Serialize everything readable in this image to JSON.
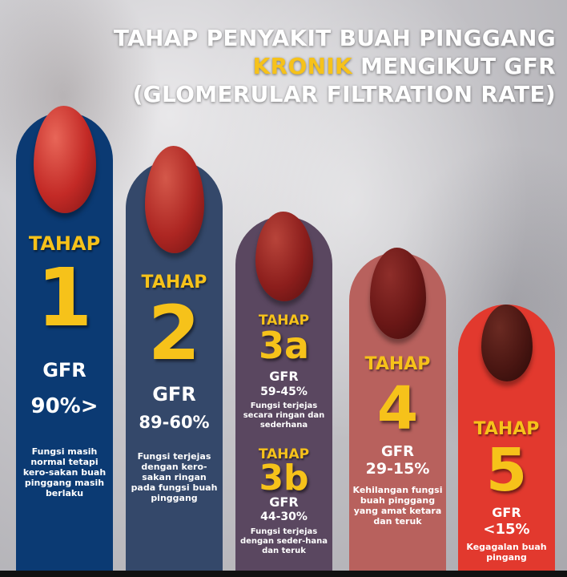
{
  "title": {
    "line1": "TAHAP PENYAKIT BUAH PINGGANG",
    "line2_highlight": "KRONIK",
    "line2_rest": " MENGIKUT GFR",
    "line3": "(GLOMERULAR FILTRATION RATE)"
  },
  "colors": {
    "accent": "#f6c21a",
    "stage1": "#0b3a73",
    "stage2": "#34486a",
    "stage3": "#5a4760",
    "stage4": "#b8615d",
    "stage5": "#e2392e"
  },
  "stages": [
    {
      "tahap": "TAHAP",
      "number": "1",
      "gfr_label": "GFR",
      "gfr": "90%>",
      "desc": "Fungsi masih normal tetapi kero-sakan buah pinggang masih berlaku"
    },
    {
      "tahap": "TAHAP",
      "number": "2",
      "gfr_label": "GFR",
      "gfr": "89-60%",
      "desc": "Fungsi terjejas dengan kero-sakan ringan pada fungsi buah pinggang"
    },
    {
      "tahap": "TAHAP",
      "number": "3a",
      "gfr_label": "GFR",
      "gfr": "59-45%",
      "desc": "Fungsi terjejas secara ringan dan sederhana"
    },
    {
      "tahap": "TAHAP",
      "number": "3b",
      "gfr_label": "GFR",
      "gfr": "44-30%",
      "desc": "Fungsi terjejas dengan seder-hana dan teruk"
    },
    {
      "tahap": "TAHAP",
      "number": "4",
      "gfr_label": "GFR",
      "gfr": "29-15%",
      "desc": "Kehilangan fungsi buah pinggang yang amat ketara dan teruk"
    },
    {
      "tahap": "TAHAP",
      "number": "5",
      "gfr_label": "GFR",
      "gfr": "<15%",
      "desc": "Kegagalan buah pingang"
    }
  ]
}
